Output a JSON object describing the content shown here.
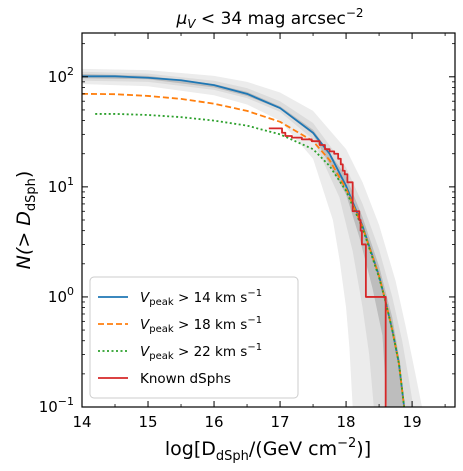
{
  "chart_data": {
    "type": "line",
    "title": {
      "main": "μ",
      "sub": "V",
      "rest": " < 34 mag arcsec",
      "sup": "−2"
    },
    "xlabel": {
      "pre": "log[D",
      "sub": "dSph",
      "mid": "/(GeV cm",
      "sup": "−2",
      "post": ")]"
    },
    "ylabel": {
      "pre": "N(> D",
      "sub": "dSph",
      "post": ")"
    },
    "xlim": [
      14,
      19.65
    ],
    "ylim": [
      0.1,
      250
    ],
    "yscale": "log",
    "grid": false,
    "legend_position": "lower-left",
    "x_ticks": [
      {
        "value": 14,
        "label": "14"
      },
      {
        "value": 15,
        "label": "15"
      },
      {
        "value": 16,
        "label": "16"
      },
      {
        "value": 17,
        "label": "17"
      },
      {
        "value": 18,
        "label": "18"
      },
      {
        "value": 19,
        "label": "19"
      }
    ],
    "y_ticks": [
      {
        "value": 0.1,
        "base": "10",
        "exp": "−1"
      },
      {
        "value": 1,
        "base": "10",
        "exp": "0"
      },
      {
        "value": 10,
        "base": "10",
        "exp": "1"
      },
      {
        "value": 100,
        "base": "10",
        "exp": "2"
      }
    ],
    "bands": [
      {
        "color": "#ececec",
        "upper": [
          [
            14,
            118
          ],
          [
            15,
            115
          ],
          [
            16,
            102
          ],
          [
            16.5,
            90
          ],
          [
            17,
            72
          ],
          [
            17.5,
            49
          ],
          [
            18,
            22
          ],
          [
            18.25,
            11
          ],
          [
            18.5,
            4.5
          ],
          [
            18.75,
            1.4
          ],
          [
            18.9,
            0.55
          ],
          [
            19.05,
            0.2
          ],
          [
            19.15,
            0.1
          ]
        ],
        "lower": [
          [
            14,
            86
          ],
          [
            15,
            82
          ],
          [
            16,
            68
          ],
          [
            16.5,
            56
          ],
          [
            17,
            40
          ],
          [
            17.5,
            18
          ],
          [
            17.8,
            5
          ],
          [
            17.9,
            2.2
          ],
          [
            18.0,
            0.8
          ],
          [
            18.05,
            0.35
          ],
          [
            18.1,
            0.1
          ]
        ]
      },
      {
        "color": "#dcdcdc",
        "upper": [
          [
            14,
            111
          ],
          [
            15,
            107
          ],
          [
            16,
            92
          ],
          [
            16.5,
            79
          ],
          [
            17,
            60
          ],
          [
            17.5,
            38
          ],
          [
            18,
            15
          ],
          [
            18.25,
            7
          ],
          [
            18.5,
            2.7
          ],
          [
            18.7,
            1.0
          ],
          [
            18.85,
            0.4
          ],
          [
            18.95,
            0.18
          ],
          [
            19.02,
            0.1
          ]
        ],
        "lower": [
          [
            14,
            92
          ],
          [
            15,
            90
          ],
          [
            16,
            76
          ],
          [
            16.5,
            64
          ],
          [
            17,
            48
          ],
          [
            17.5,
            27
          ],
          [
            17.9,
            8
          ],
          [
            18.1,
            2.6
          ],
          [
            18.25,
            0.8
          ],
          [
            18.35,
            0.3
          ],
          [
            18.42,
            0.1
          ]
        ]
      },
      {
        "color": "#bdbdbd",
        "upper": [
          [
            14,
            106
          ],
          [
            15,
            102
          ],
          [
            16,
            86
          ],
          [
            16.5,
            73
          ],
          [
            17,
            54
          ],
          [
            17.5,
            33
          ],
          [
            18,
            12.5
          ],
          [
            18.25,
            5.3
          ],
          [
            18.5,
            1.9
          ],
          [
            18.7,
            0.65
          ],
          [
            18.82,
            0.25
          ],
          [
            18.88,
            0.1
          ]
        ],
        "lower": [
          [
            14,
            97
          ],
          [
            15,
            95
          ],
          [
            16,
            80
          ],
          [
            16.5,
            67
          ],
          [
            17,
            51
          ],
          [
            17.5,
            30
          ],
          [
            18,
            8.5
          ],
          [
            18.2,
            3.5
          ],
          [
            18.4,
            1.2
          ],
          [
            18.55,
            0.45
          ],
          [
            18.62,
            0.1
          ]
        ]
      }
    ],
    "series": [
      {
        "name": "V",
        "name_sub": "peak",
        "name_rest": " > 14 km s",
        "name_sup": "−1",
        "color": "#1f77b4",
        "dash": "",
        "width": 1.8,
        "points": [
          [
            14,
            101
          ],
          [
            14.5,
            101
          ],
          [
            15,
            98
          ],
          [
            15.5,
            93
          ],
          [
            16,
            84
          ],
          [
            16.5,
            70
          ],
          [
            17,
            52
          ],
          [
            17.5,
            31
          ],
          [
            17.75,
            20
          ],
          [
            18,
            10.2
          ],
          [
            18.25,
            4.4
          ],
          [
            18.5,
            1.55
          ],
          [
            18.6,
            0.9
          ],
          [
            18.7,
            0.5
          ],
          [
            18.8,
            0.25
          ],
          [
            18.88,
            0.1
          ]
        ]
      },
      {
        "name": "V",
        "name_sub": "peak",
        "name_rest": " > 18 km s",
        "name_sup": "−1",
        "color": "#ff7f0e",
        "dash": "6,3",
        "width": 1.8,
        "points": [
          [
            14,
            70
          ],
          [
            14.5,
            69.5
          ],
          [
            15,
            67
          ],
          [
            15.5,
            63
          ],
          [
            16,
            57
          ],
          [
            16.5,
            49
          ],
          [
            17,
            39
          ],
          [
            17.5,
            26
          ],
          [
            17.75,
            17.5
          ],
          [
            18,
            9.6
          ],
          [
            18.25,
            4.3
          ],
          [
            18.5,
            1.55
          ],
          [
            18.6,
            0.9
          ],
          [
            18.7,
            0.5
          ],
          [
            18.8,
            0.25
          ],
          [
            18.88,
            0.1
          ]
        ]
      },
      {
        "name": "V",
        "name_sub": "peak",
        "name_rest": " > 22 km s",
        "name_sup": "−1",
        "color": "#2ca02c",
        "dash": "2,2.5",
        "width": 1.8,
        "points": [
          [
            14.2,
            46
          ],
          [
            14.5,
            46
          ],
          [
            15,
            45
          ],
          [
            15.5,
            43
          ],
          [
            16,
            40
          ],
          [
            16.5,
            36
          ],
          [
            17,
            30
          ],
          [
            17.5,
            22
          ],
          [
            17.75,
            15.5
          ],
          [
            18,
            9.2
          ],
          [
            18.25,
            4.2
          ],
          [
            18.5,
            1.5
          ],
          [
            18.6,
            0.9
          ],
          [
            18.7,
            0.5
          ],
          [
            18.8,
            0.25
          ],
          [
            18.88,
            0.1
          ]
        ]
      },
      {
        "name": "Known dSphs",
        "color": "#d62728",
        "dash": "",
        "width": 1.8,
        "step": true,
        "points": [
          [
            16.83,
            34
          ],
          [
            17.03,
            31
          ],
          [
            17.08,
            29
          ],
          [
            17.18,
            28
          ],
          [
            17.33,
            27
          ],
          [
            17.48,
            26
          ],
          [
            17.6,
            24
          ],
          [
            17.68,
            22
          ],
          [
            17.75,
            21
          ],
          [
            17.82,
            20
          ],
          [
            17.88,
            18
          ],
          [
            17.92,
            16
          ],
          [
            17.95,
            14
          ],
          [
            17.98,
            13
          ],
          [
            18.02,
            11
          ],
          [
            18.1,
            6
          ],
          [
            18.2,
            5
          ],
          [
            18.22,
            4
          ],
          [
            18.24,
            3
          ],
          [
            18.3,
            1
          ],
          [
            18.6,
            1
          ],
          [
            18.6,
            0.1
          ]
        ]
      }
    ]
  }
}
